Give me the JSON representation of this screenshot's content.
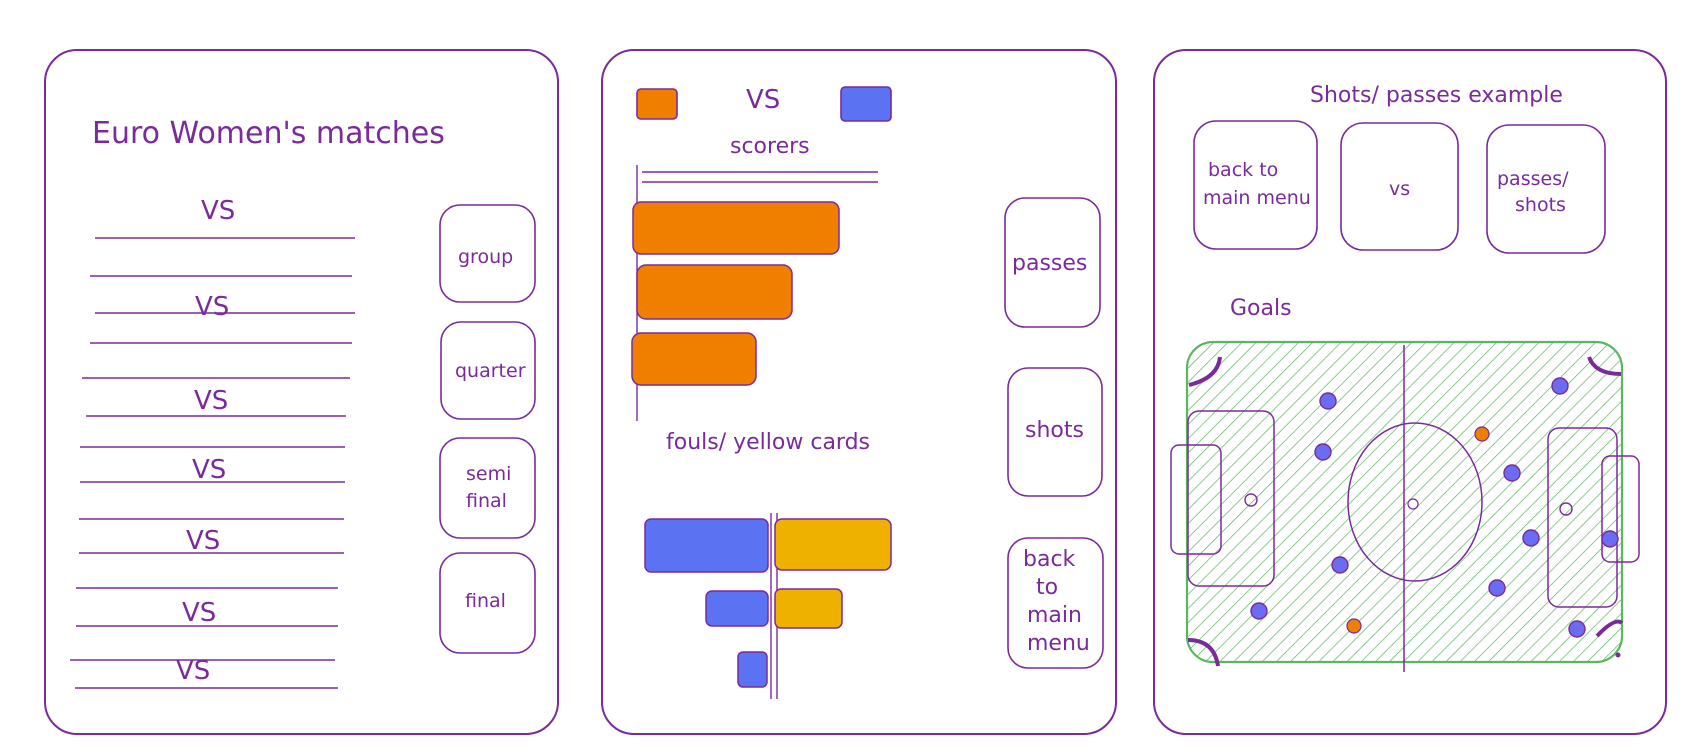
{
  "screen1": {
    "title": "Euro Women's matches",
    "matches": [
      "VS",
      "VS",
      "VS",
      "VS",
      "VS",
      "VS",
      "VS"
    ],
    "stages": [
      "group",
      "quarter",
      "semi",
      "final",
      "final"
    ]
  },
  "screen2": {
    "header_vs": "VS",
    "scorers_title": "scorers",
    "fouls_title": "fouls/ yellow cards",
    "buttons": {
      "passes": "passes",
      "shots": "shots",
      "back_line1": "back",
      "back_line2": "to",
      "back_line3": "main",
      "back_line4": "menu"
    },
    "colors": {
      "team_a": "#f07f00",
      "team_b": "#5b72f2",
      "yellow": "#efb100",
      "outline": "#7b2a9c"
    }
  },
  "screen3": {
    "title": "Shots/ passes example",
    "buttons": {
      "back_line1": "back to",
      "back_line2": "main menu",
      "vs": "vs",
      "passes_line1": "passes/",
      "passes_line2": "shots"
    },
    "goals_label": "Goals",
    "pitch_color": "#58b75f"
  }
}
